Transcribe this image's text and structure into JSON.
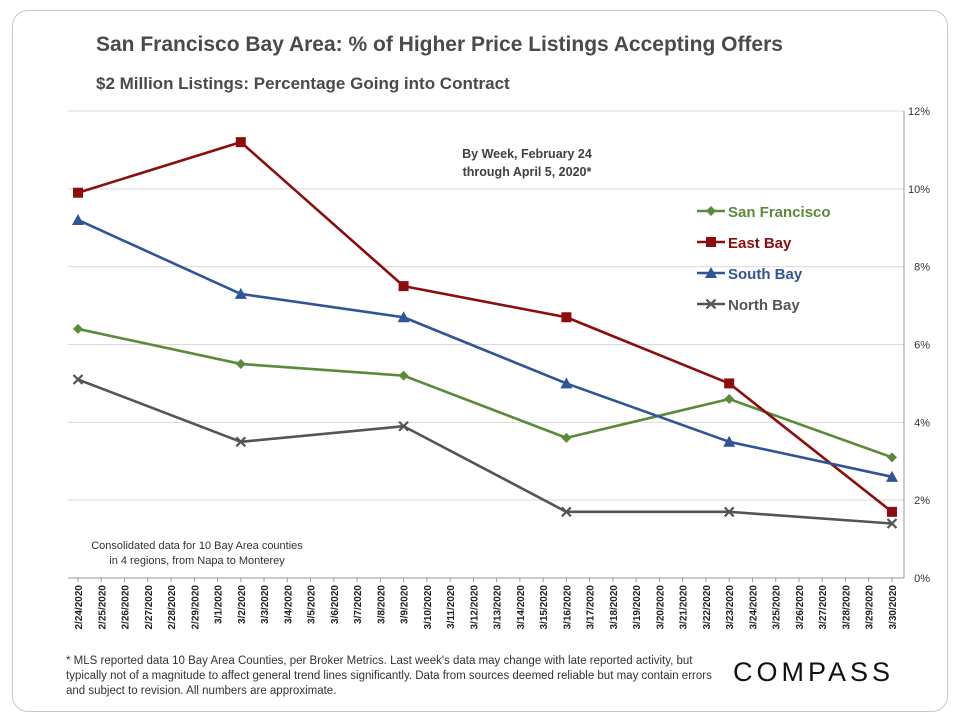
{
  "header": {
    "title": "San Francisco Bay Area: % of Higher Price Listings Accepting Offers",
    "subtitle": "$2 Million Listings: Percentage Going into Contract"
  },
  "chart_data": {
    "type": "line",
    "title": "San Francisco Bay Area: % of Higher Price Listings Accepting Offers",
    "subtitle": "$2 Million Listings: Percentage Going into Contract",
    "annotation_lines": [
      "By Week, February 24",
      "through April 5, 2020*"
    ],
    "note_lines": [
      "Consolidated data for 10 Bay Area counties",
      "in 4 regions, from Napa to Monterey"
    ],
    "xlabel": "",
    "ylabel": "",
    "ylim": [
      0,
      12
    ],
    "y_ticks": [
      "0%",
      "2%",
      "4%",
      "6%",
      "8%",
      "10%",
      "12%"
    ],
    "y_axis_position": "right",
    "grid": true,
    "legend_position": "top-right",
    "x": [
      "2/24/2020",
      "2/25/2020",
      "2/26/2020",
      "2/27/2020",
      "2/28/2020",
      "2/29/2020",
      "3/1/2020",
      "3/2/2020",
      "3/3/2020",
      "3/4/2020",
      "3/5/2020",
      "3/6/2020",
      "3/7/2020",
      "3/8/2020",
      "3/9/2020",
      "3/10/2020",
      "3/11/2020",
      "3/12/2020",
      "3/13/2020",
      "3/14/2020",
      "3/15/2020",
      "3/16/2020",
      "3/17/2020",
      "3/18/2020",
      "3/19/2020",
      "3/20/2020",
      "3/21/2020",
      "3/22/2020",
      "3/23/2020",
      "3/24/2020",
      "3/25/2020",
      "3/26/2020",
      "3/27/2020",
      "3/28/2020",
      "3/29/2020",
      "3/30/2020"
    ],
    "series": [
      {
        "name": "San Francisco",
        "color": "#5a8a3a",
        "marker": "diamond",
        "points": [
          {
            "x": "2/24/2020",
            "y": 6.4
          },
          {
            "x": "3/2/2020",
            "y": 5.5
          },
          {
            "x": "3/9/2020",
            "y": 5.2
          },
          {
            "x": "3/16/2020",
            "y": 3.6
          },
          {
            "x": "3/23/2020",
            "y": 4.6
          },
          {
            "x": "3/30/2020",
            "y": 3.1
          }
        ]
      },
      {
        "name": "East Bay",
        "color": "#8b0d0d",
        "marker": "square",
        "points": [
          {
            "x": "2/24/2020",
            "y": 9.9
          },
          {
            "x": "3/2/2020",
            "y": 11.2
          },
          {
            "x": "3/9/2020",
            "y": 7.5
          },
          {
            "x": "3/16/2020",
            "y": 6.7
          },
          {
            "x": "3/23/2020",
            "y": 5.0
          },
          {
            "x": "3/30/2020",
            "y": 1.7
          }
        ]
      },
      {
        "name": "South Bay",
        "color": "#2f5597",
        "marker": "triangle",
        "points": [
          {
            "x": "2/24/2020",
            "y": 9.2
          },
          {
            "x": "3/2/2020",
            "y": 7.3
          },
          {
            "x": "3/9/2020",
            "y": 6.7
          },
          {
            "x": "3/16/2020",
            "y": 5.0
          },
          {
            "x": "3/23/2020",
            "y": 3.5
          },
          {
            "x": "3/30/2020",
            "y": 2.6
          }
        ]
      },
      {
        "name": "North Bay",
        "color": "#555555",
        "marker": "x",
        "points": [
          {
            "x": "2/24/2020",
            "y": 5.1
          },
          {
            "x": "3/2/2020",
            "y": 3.5
          },
          {
            "x": "3/9/2020",
            "y": 3.9
          },
          {
            "x": "3/16/2020",
            "y": 1.7
          },
          {
            "x": "3/23/2020",
            "y": 1.7
          },
          {
            "x": "3/30/2020",
            "y": 1.4
          }
        ]
      }
    ]
  },
  "footer": {
    "footnote": "* MLS reported data 10 Bay Area Counties, per Broker Metrics. Last week's data may change with late reported activity, but typically not of a magnitude to affect general trend lines significantly. Data from sources deemed reliable but may contain errors and subject to revision. All numbers are approximate.",
    "logo_text": "COMPASS"
  }
}
